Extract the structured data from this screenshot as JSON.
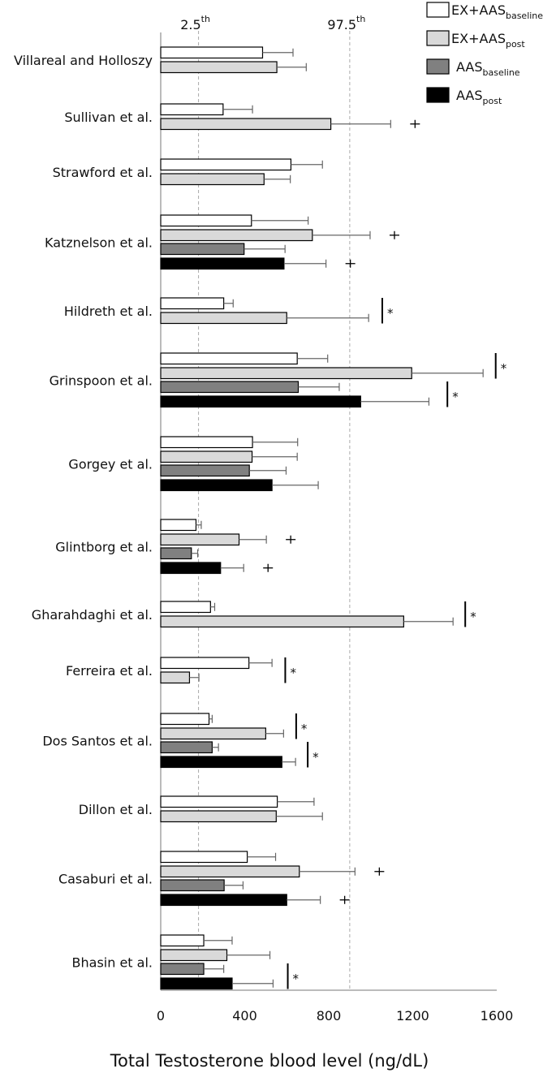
{
  "chart_data": {
    "type": "bar",
    "orientation": "horizontal",
    "xlabel": "Total Testosterone blood level (ng/dL)",
    "xlim": [
      0,
      1600
    ],
    "xticks": [
      "0",
      "400",
      "800",
      "1200",
      "1600"
    ],
    "reference_lines": [
      {
        "label": "2.5",
        "sup": "th",
        "value": 180
      },
      {
        "label": "97.5",
        "sup": "th",
        "value": 900
      }
    ],
    "series": [
      {
        "key": "exb",
        "name": "EX+AAS",
        "sub": "baseline",
        "color": "#ffffff"
      },
      {
        "key": "exp",
        "name": "EX+AAS",
        "sub": "post",
        "color": "#d9d9d9"
      },
      {
        "key": "aab",
        "name": "AAS",
        "sub": "baseline",
        "color": "#808080"
      },
      {
        "key": "aap",
        "name": "AAS",
        "sub": "post",
        "color": "#000000"
      }
    ],
    "studies": [
      {
        "name": "Villareal and Holloszy",
        "bars": [
          {
            "series": "exb",
            "value": 485,
            "err": 145
          },
          {
            "series": "exp",
            "value": 553,
            "err": 140
          }
        ],
        "marks": []
      },
      {
        "name": "Sullivan et al.",
        "bars": [
          {
            "series": "exb",
            "value": 297,
            "err": 140
          },
          {
            "series": "exp",
            "value": 810,
            "err": 285
          }
        ],
        "marks": [
          {
            "type": "dagger",
            "series": "exp"
          }
        ]
      },
      {
        "name": "Strawford et al.",
        "bars": [
          {
            "series": "exb",
            "value": 620,
            "err": 150
          },
          {
            "series": "exp",
            "value": 492,
            "err": 125
          }
        ],
        "marks": []
      },
      {
        "name": "Katznelson et al.",
        "bars": [
          {
            "series": "exb",
            "value": 432,
            "err": 270
          },
          {
            "series": "exp",
            "value": 722,
            "err": 275
          },
          {
            "series": "aab",
            "value": 397,
            "err": 195
          },
          {
            "series": "aap",
            "value": 587,
            "err": 200
          }
        ],
        "marks": [
          {
            "type": "dagger",
            "series": "exp"
          },
          {
            "type": "dagger",
            "series": "aap"
          }
        ]
      },
      {
        "name": "Hildreth et al.",
        "bars": [
          {
            "series": "exb",
            "value": 300,
            "err": 45
          },
          {
            "series": "exp",
            "value": 600,
            "err": 390
          }
        ],
        "marks": [
          {
            "type": "star",
            "group": [
              "exb",
              "exp"
            ],
            "xval": 1055
          }
        ]
      },
      {
        "name": "Grinspoon et al.",
        "bars": [
          {
            "series": "exb",
            "value": 650,
            "err": 145
          },
          {
            "series": "exp",
            "value": 1195,
            "err": 340
          },
          {
            "series": "aab",
            "value": 655,
            "err": 195
          },
          {
            "series": "aap",
            "value": 952,
            "err": 325
          }
        ],
        "marks": [
          {
            "type": "star",
            "group": [
              "exb",
              "exp"
            ],
            "xval": 1595
          },
          {
            "type": "star",
            "group": [
              "aab",
              "aap"
            ],
            "xval": 1365
          }
        ]
      },
      {
        "name": "Gorgey et al.",
        "bars": [
          {
            "series": "exb",
            "value": 437,
            "err": 215
          },
          {
            "series": "exp",
            "value": 435,
            "err": 215
          },
          {
            "series": "aab",
            "value": 422,
            "err": 175
          },
          {
            "series": "aap",
            "value": 530,
            "err": 220
          }
        ],
        "marks": []
      },
      {
        "name": "Glintborg et al.",
        "bars": [
          {
            "series": "exb",
            "value": 168,
            "err": 25
          },
          {
            "series": "exp",
            "value": 373,
            "err": 130
          },
          {
            "series": "aab",
            "value": 146,
            "err": 30
          },
          {
            "series": "aap",
            "value": 285,
            "err": 110
          }
        ],
        "marks": [
          {
            "type": "dagger",
            "series": "exp"
          },
          {
            "type": "dagger",
            "series": "aap"
          }
        ]
      },
      {
        "name": "Gharahdaghi et al.",
        "bars": [
          {
            "series": "exb",
            "value": 237,
            "err": 20
          },
          {
            "series": "exp",
            "value": 1157,
            "err": 235
          }
        ],
        "marks": [
          {
            "type": "star",
            "group": [
              "exb",
              "exp"
            ],
            "xval": 1450
          }
        ]
      },
      {
        "name": "Ferreira et al.",
        "bars": [
          {
            "series": "exb",
            "value": 420,
            "err": 110
          },
          {
            "series": "exp",
            "value": 137,
            "err": 45
          }
        ],
        "marks": [
          {
            "type": "star",
            "group": [
              "exb",
              "exp"
            ],
            "xval": 593
          }
        ]
      },
      {
        "name": "Dos Santos et al.",
        "bars": [
          {
            "series": "exb",
            "value": 230,
            "err": 15
          },
          {
            "series": "exp",
            "value": 500,
            "err": 85
          },
          {
            "series": "aab",
            "value": 245,
            "err": 30
          },
          {
            "series": "aap",
            "value": 577,
            "err": 65
          }
        ],
        "marks": [
          {
            "type": "star",
            "group": [
              "exb",
              "exp"
            ],
            "xval": 645
          },
          {
            "type": "star",
            "group": [
              "aab",
              "aap"
            ],
            "xval": 700
          }
        ]
      },
      {
        "name": "Dillon et al.",
        "bars": [
          {
            "series": "exb",
            "value": 555,
            "err": 175
          },
          {
            "series": "exp",
            "value": 550,
            "err": 220
          }
        ],
        "marks": []
      },
      {
        "name": "Casaburi et al.",
        "bars": [
          {
            "series": "exb",
            "value": 412,
            "err": 135
          },
          {
            "series": "exp",
            "value": 660,
            "err": 265
          },
          {
            "series": "aab",
            "value": 302,
            "err": 90
          },
          {
            "series": "aap",
            "value": 600,
            "err": 160
          }
        ],
        "marks": [
          {
            "type": "dagger",
            "series": "exp"
          },
          {
            "type": "dagger",
            "series": "aap"
          }
        ]
      },
      {
        "name": "Bhasin et al.",
        "bars": [
          {
            "series": "exb",
            "value": 205,
            "err": 135
          },
          {
            "series": "exp",
            "value": 315,
            "err": 205
          },
          {
            "series": "aab",
            "value": 205,
            "err": 95
          },
          {
            "series": "aap",
            "value": 340,
            "err": 195
          }
        ],
        "marks": [
          {
            "type": "star",
            "group": [
              "aab",
              "aap"
            ],
            "xval": 605
          }
        ]
      }
    ]
  }
}
